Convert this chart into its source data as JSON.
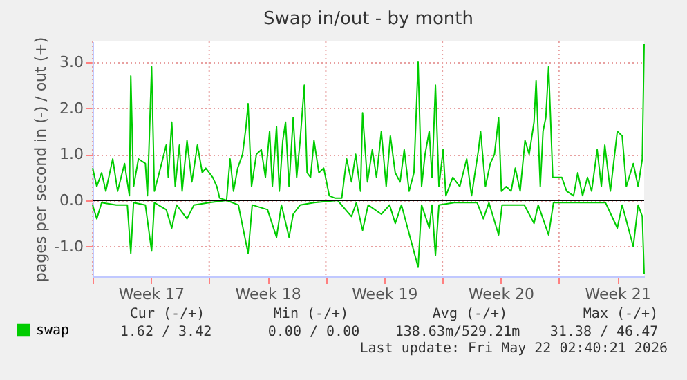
{
  "chart_data": {
    "type": "line",
    "title": "Swap in/out - by month",
    "ylabel": "pages per second in (-) / out (+)",
    "xlim": [
      "2026-04-19T00:00",
      "2026-05-22T02:40"
    ],
    "xticks": [
      {
        "value": "2026-04-19T00:00",
        "label": null
      },
      {
        "value": "2026-04-22T12:00",
        "label": "Week 17"
      },
      {
        "value": "2026-04-26T00:00",
        "label": null
      },
      {
        "value": "2026-04-29T12:00",
        "label": "Week 18"
      },
      {
        "value": "2026-05-03T00:00",
        "label": null
      },
      {
        "value": "2026-05-06T12:00",
        "label": "Week 19"
      },
      {
        "value": "2026-05-10T00:00",
        "label": null
      },
      {
        "value": "2026-05-13T12:00",
        "label": "Week 20"
      },
      {
        "value": "2026-05-17T00:00",
        "label": null
      },
      {
        "value": "2026-05-20T12:00",
        "label": "Week 21"
      }
    ],
    "ylim": [
      -1.65,
      3.45
    ],
    "yticks": [
      {
        "value": -1,
        "label": "-1.0"
      },
      {
        "value": 0,
        "label": "0.0"
      },
      {
        "value": 1,
        "label": "1.0"
      },
      {
        "value": 2,
        "label": "2.0"
      },
      {
        "value": 3,
        "label": "3.0"
      }
    ],
    "grid": true,
    "legend": "bottom left",
    "marker": "none",
    "line_style": "solid",
    "ref_lines": [
      {
        "axis": "y",
        "value": 0,
        "color": "#000000"
      }
    ],
    "series": [
      {
        "name": "swap",
        "color": "#00cc00",
        "x": [
          "2026-04-19T00:00",
          "2026-04-19T06:00",
          "2026-04-19T13:00",
          "2026-04-19T19:00",
          "2026-04-20T05:00",
          "2026-04-20T12:00",
          "2026-04-20T22:00",
          "2026-04-21T05:00",
          "2026-04-21T07:00",
          "2026-04-21T11:00",
          "2026-04-21T18:00",
          "2026-04-22T04:00",
          "2026-04-22T07:00",
          "2026-04-22T13:00",
          "2026-04-22T17:00",
          "2026-04-23T00:00",
          "2026-04-23T10:00",
          "2026-04-23T13:00",
          "2026-04-23T18:00",
          "2026-04-23T23:00",
          "2026-04-24T05:00",
          "2026-04-24T09:00",
          "2026-04-24T16:00",
          "2026-04-24T23:00",
          "2026-04-25T07:00",
          "2026-04-25T14:00",
          "2026-04-25T19:00",
          "2026-04-26T05:00",
          "2026-04-26T11:00",
          "2026-04-26T15:00",
          "2026-04-27T01:00",
          "2026-04-27T06:00",
          "2026-04-27T11:00",
          "2026-04-27T17:00",
          "2026-04-28T00:00",
          "2026-04-28T05:00",
          "2026-04-28T08:00",
          "2026-04-28T13:00",
          "2026-04-28T20:00",
          "2026-04-29T03:00",
          "2026-04-29T09:00",
          "2026-04-29T15:00",
          "2026-04-29T19:00",
          "2026-04-30T01:00",
          "2026-04-30T05:00",
          "2026-04-30T10:00",
          "2026-04-30T14:00",
          "2026-04-30T19:00",
          "2026-05-01T01:00",
          "2026-05-01T06:00",
          "2026-05-01T11:00",
          "2026-05-01T17:00",
          "2026-05-01T21:00",
          "2026-05-02T02:00",
          "2026-05-02T07:00",
          "2026-05-02T14:00",
          "2026-05-02T21:00",
          "2026-05-03T05:00",
          "2026-05-03T13:00",
          "2026-05-03T23:00",
          "2026-05-04T06:00",
          "2026-05-04T13:00",
          "2026-05-04T19:00",
          "2026-05-05T02:00",
          "2026-05-05T05:00",
          "2026-05-05T12:00",
          "2026-05-05T19:00",
          "2026-05-06T01:00",
          "2026-05-06T08:00",
          "2026-05-06T15:00",
          "2026-05-06T21:00",
          "2026-05-07T04:00",
          "2026-05-07T11:00",
          "2026-05-07T17:00",
          "2026-05-08T00:00",
          "2026-05-08T07:00",
          "2026-05-08T13:00",
          "2026-05-08T18:00",
          "2026-05-08T23:00",
          "2026-05-09T05:00",
          "2026-05-09T09:00",
          "2026-05-09T14:00",
          "2026-05-09T19:00",
          "2026-05-10T01:00",
          "2026-05-10T05:00",
          "2026-05-10T15:00",
          "2026-05-11T01:00",
          "2026-05-11T11:00",
          "2026-05-11T18:00",
          "2026-05-12T04:00",
          "2026-05-12T07:00",
          "2026-05-12T14:00",
          "2026-05-12T21:00",
          "2026-05-13T03:00",
          "2026-05-13T09:00",
          "2026-05-13T13:00",
          "2026-05-13T20:00",
          "2026-05-14T03:00",
          "2026-05-14T09:00",
          "2026-05-14T16:00",
          "2026-05-14T23:00",
          "2026-05-15T05:00",
          "2026-05-15T12:00",
          "2026-05-15T15:00",
          "2026-05-15T21:00",
          "2026-05-16T01:00",
          "2026-05-16T05:00",
          "2026-05-16T09:00",
          "2026-05-16T15:00",
          "2026-05-16T21:00",
          "2026-05-17T04:00",
          "2026-05-17T11:00",
          "2026-05-17T21:00",
          "2026-05-18T03:00",
          "2026-05-18T10:00",
          "2026-05-18T17:00",
          "2026-05-18T23:00",
          "2026-05-19T07:00",
          "2026-05-19T13:00",
          "2026-05-19T18:00",
          "2026-05-20T02:00",
          "2026-05-20T12:00",
          "2026-05-20T19:00",
          "2026-05-21T01:00",
          "2026-05-21T11:00",
          "2026-05-21T18:00",
          "2026-05-22T00:00",
          "2026-05-22T02:40"
        ],
        "values": [
          0.7,
          0.3,
          0.6,
          0.2,
          0.9,
          0.2,
          0.8,
          0.1,
          2.7,
          0.3,
          0.9,
          0.8,
          0.1,
          2.9,
          0.2,
          0.6,
          1.2,
          0.5,
          1.7,
          0.3,
          1.2,
          0.2,
          1.3,
          0.4,
          1.2,
          0.6,
          0.7,
          0.5,
          0.3,
          0.05,
          0.0,
          0.9,
          0.2,
          0.7,
          1.0,
          1.6,
          2.1,
          0.3,
          1.0,
          1.1,
          0.5,
          1.5,
          0.3,
          1.6,
          0.2,
          1.3,
          1.7,
          0.3,
          1.8,
          0.5,
          1.3,
          2.5,
          0.6,
          0.5,
          1.3,
          0.6,
          0.7,
          0.1,
          0.05,
          0.05,
          0.9,
          0.4,
          1.0,
          0.2,
          1.9,
          0.4,
          1.1,
          0.5,
          1.5,
          0.3,
          1.4,
          0.6,
          0.4,
          1.1,
          0.2,
          0.6,
          3.0,
          0.3,
          1.0,
          1.5,
          0.5,
          2.5,
          0.3,
          1.1,
          0.1,
          0.5,
          0.3,
          0.9,
          0.1,
          1.1,
          1.5,
          0.3,
          0.8,
          1.0,
          1.8,
          0.2,
          0.3,
          0.2,
          0.7,
          0.2,
          1.3,
          1.0,
          1.7,
          2.6,
          0.3,
          1.5,
          1.8,
          2.9,
          0.5,
          0.5,
          0.5,
          0.2,
          0.1,
          0.6,
          0.1,
          0.5,
          0.2,
          1.1,
          0.3,
          1.2,
          0.2,
          1.5,
          1.4,
          0.3,
          0.8,
          0.3,
          0.9,
          3.4
        ]
      },
      {
        "color": "#00cc00",
        "x": [
          "2026-04-19T00:00",
          "2026-04-19T06:00",
          "2026-04-19T13:00",
          "2026-04-20T10:00",
          "2026-04-21T02:00",
          "2026-04-21T07:00",
          "2026-04-21T11:00",
          "2026-04-22T04:00",
          "2026-04-22T13:00",
          "2026-04-22T17:00",
          "2026-04-23T10:00",
          "2026-04-23T18:00",
          "2026-04-24T01:00",
          "2026-04-24T16:00",
          "2026-04-25T02:00",
          "2026-04-26T00:00",
          "2026-04-27T01:00",
          "2026-04-27T18:00",
          "2026-04-28T08:00",
          "2026-04-28T14:00",
          "2026-04-29T12:00",
          "2026-04-30T01:00",
          "2026-04-30T08:00",
          "2026-04-30T19:00",
          "2026-05-01T01:00",
          "2026-05-01T11:00",
          "2026-05-02T07:00",
          "2026-05-03T17:00",
          "2026-05-04T13:00",
          "2026-05-04T20:00",
          "2026-05-05T05:00",
          "2026-05-05T13:00",
          "2026-05-06T08:00",
          "2026-05-06T20:00",
          "2026-05-07T04:00",
          "2026-05-07T13:00",
          "2026-05-08T13:00",
          "2026-05-08T18:00",
          "2026-05-09T05:00",
          "2026-05-09T09:00",
          "2026-05-09T14:00",
          "2026-05-09T19:00",
          "2026-05-10T17:00",
          "2026-05-12T02:00",
          "2026-05-12T11:00",
          "2026-05-12T19:00",
          "2026-05-13T09:00",
          "2026-05-13T14:00",
          "2026-05-14T22:00",
          "2026-05-15T12:00",
          "2026-05-15T18:00",
          "2026-05-16T09:00",
          "2026-05-16T16:00",
          "2026-05-18T10:00",
          "2026-05-19T19:00",
          "2026-05-20T12:00",
          "2026-05-20T19:00",
          "2026-05-21T11:00",
          "2026-05-21T18:00",
          "2026-05-22T00:00",
          "2026-05-22T02:40"
        ],
        "values": [
          -0.1,
          -0.4,
          -0.05,
          -0.1,
          -0.1,
          -1.15,
          -0.05,
          -0.1,
          -1.1,
          -0.05,
          -0.2,
          -0.6,
          -0.1,
          -0.4,
          -0.1,
          -0.05,
          0.0,
          -0.1,
          -1.15,
          -0.1,
          -0.2,
          -0.8,
          -0.1,
          -0.8,
          -0.3,
          -0.1,
          -0.05,
          0.0,
          -0.35,
          -0.05,
          -0.65,
          -0.1,
          -0.3,
          -0.1,
          -0.5,
          -0.1,
          -1.45,
          -0.1,
          -0.6,
          -0.1,
          -1.2,
          -0.1,
          -0.05,
          -0.05,
          -0.4,
          -0.05,
          -0.75,
          -0.1,
          -0.1,
          -0.5,
          -0.1,
          -0.75,
          -0.05,
          -0.05,
          -0.05,
          -0.6,
          -0.1,
          -1.0,
          -0.1,
          -0.35,
          -1.6
        ]
      }
    ],
    "annotations": [
      "Cur (-/+)",
      "Min (-/+)",
      "Avg (-/+)",
      "Max (-/+)",
      "1.62 /   3.42",
      "0.00 /   0.00",
      "138.63m/529.21m",
      "31.38 / 46.47",
      "Last update: Fri May 22 02:40:21 2026"
    ]
  }
}
